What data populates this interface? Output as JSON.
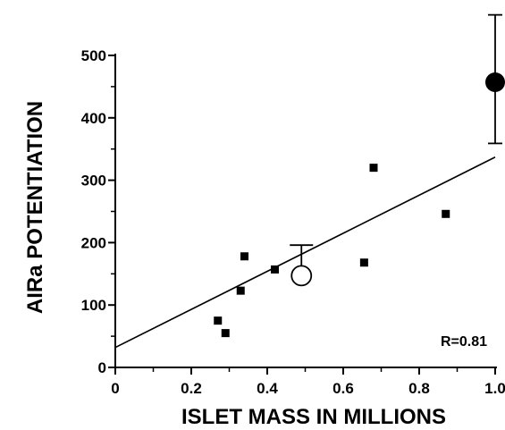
{
  "chart_data": {
    "type": "scatter",
    "xlabel": "ISLET MASS IN MILLIONS",
    "ylabel": "AIRa POTENTIATION",
    "xlim": [
      0,
      1.0
    ],
    "ylim": [
      0,
      500
    ],
    "x_ticks": [
      "0",
      "0.2",
      "0.4",
      "0.6",
      "0.8",
      "1.0"
    ],
    "y_ticks": [
      "0",
      "100",
      "200",
      "300",
      "400",
      "500"
    ],
    "grid": false,
    "series": [
      {
        "marker": "filled-square",
        "points": [
          {
            "x": 0.27,
            "y": 75
          },
          {
            "x": 0.29,
            "y": 55
          },
          {
            "x": 0.33,
            "y": 123
          },
          {
            "x": 0.34,
            "y": 178
          },
          {
            "x": 0.42,
            "y": 157
          },
          {
            "x": 0.655,
            "y": 168
          },
          {
            "x": 0.68,
            "y": 320
          },
          {
            "x": 0.87,
            "y": 246
          }
        ]
      },
      {
        "marker": "open-circle",
        "points": [
          {
            "x": 0.49,
            "y": 147,
            "error_upper": 196
          }
        ]
      },
      {
        "marker": "filled-circle",
        "points": [
          {
            "x": 1.0,
            "y": 457,
            "error_upper": 565,
            "error_lower": 359
          }
        ]
      }
    ],
    "regression_line": {
      "x": [
        0,
        1.0
      ],
      "y": [
        32,
        337
      ]
    },
    "annotation": "R=0.81"
  }
}
